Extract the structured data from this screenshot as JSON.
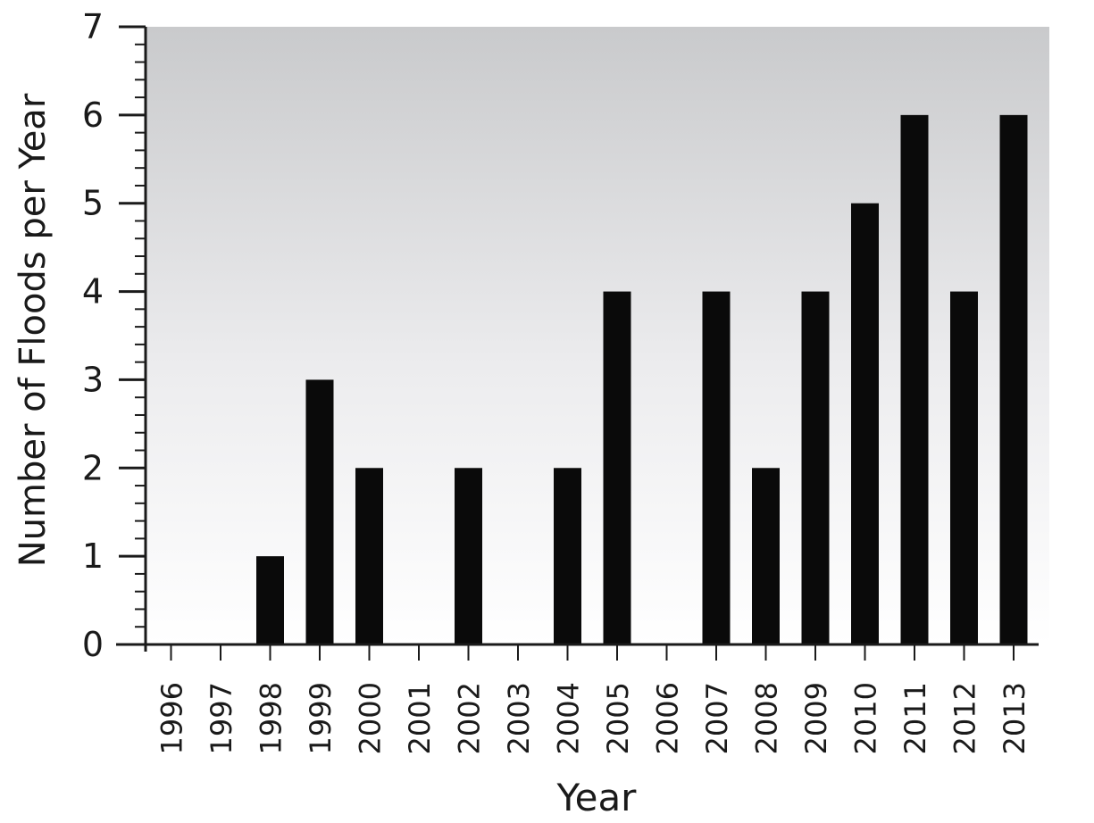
{
  "chart_data": {
    "type": "bar",
    "categories": [
      "1996",
      "1997",
      "1998",
      "1999",
      "2000",
      "2001",
      "2002",
      "2003",
      "2004",
      "2005",
      "2006",
      "2007",
      "2008",
      "2009",
      "2010",
      "2011",
      "2012",
      "2013"
    ],
    "values": [
      0,
      0,
      1,
      3,
      2,
      0,
      2,
      0,
      2,
      4,
      0,
      4,
      2,
      4,
      5,
      6,
      4,
      6
    ],
    "xlabel": "Year",
    "ylabel": "Number of Floods per Year",
    "ylim": [
      0,
      7
    ],
    "yticks": [
      0,
      1,
      2,
      3,
      4,
      5,
      6,
      7
    ],
    "grid": false,
    "bar_color": "#0a0a0a",
    "background": "gradient-gray-top-to-white-bottom"
  }
}
